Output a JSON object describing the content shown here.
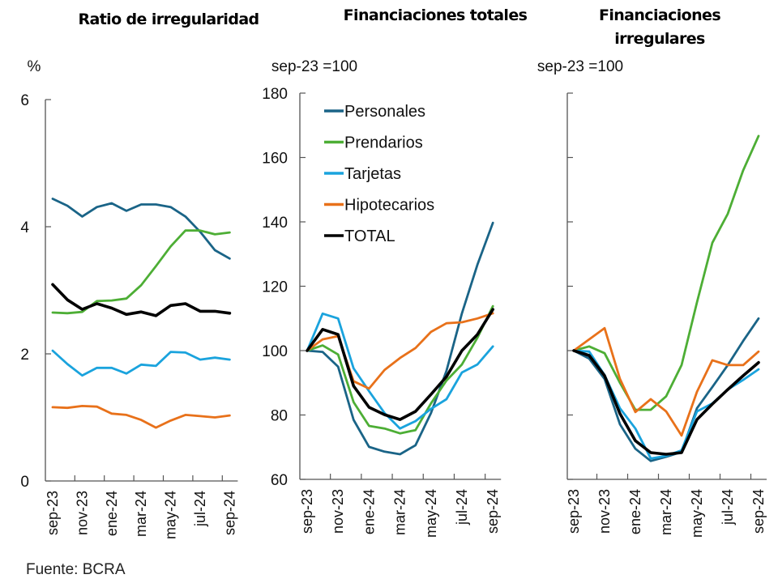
{
  "source": "Fuente: BCRA",
  "chart_data": [
    {
      "type": "line",
      "title": "Ratio de irregularidad",
      "ylabel": "%",
      "ylim": [
        0,
        6
      ],
      "yticks": [
        0,
        2,
        4,
        6
      ],
      "x": [
        "sep-23",
        "oct-23",
        "nov-23",
        "dic-23",
        "ene-24",
        "feb-24",
        "mar-24",
        "abr-24",
        "may-24",
        "jun-24",
        "jul-24",
        "ago-24",
        "sep-24"
      ],
      "xtick_labels": [
        "sep-23",
        "nov-23",
        "ene-24",
        "mar-24",
        "may-24",
        "jul-24",
        "sep-24"
      ],
      "series": [
        {
          "name": "Personales",
          "color": "#1A6487",
          "values": [
            4.44,
            4.33,
            4.16,
            4.31,
            4.37,
            4.25,
            4.35,
            4.35,
            4.31,
            4.16,
            3.92,
            3.63,
            3.5
          ]
        },
        {
          "name": "Prendarios",
          "color": "#4DAE35",
          "values": [
            2.65,
            2.64,
            2.66,
            2.83,
            2.84,
            2.87,
            3.08,
            3.38,
            3.69,
            3.94,
            3.94,
            3.88,
            3.91
          ]
        },
        {
          "name": "Tarjetas",
          "color": "#1AA3DD",
          "values": [
            2.05,
            1.84,
            1.66,
            1.78,
            1.78,
            1.69,
            1.83,
            1.81,
            2.03,
            2.02,
            1.91,
            1.94,
            1.91
          ]
        },
        {
          "name": "Hipotecarios",
          "color": "#E8711A",
          "values": [
            1.16,
            1.15,
            1.18,
            1.17,
            1.06,
            1.04,
            0.96,
            0.84,
            0.95,
            1.04,
            1.02,
            1.0,
            1.03
          ]
        },
        {
          "name": "TOTAL",
          "color": "#000000",
          "values": [
            3.09,
            2.85,
            2.7,
            2.79,
            2.72,
            2.62,
            2.66,
            2.6,
            2.76,
            2.79,
            2.67,
            2.67,
            2.64
          ]
        }
      ]
    },
    {
      "type": "line",
      "title": "Financiaciones totales",
      "ylabel": "sep-23 =100",
      "ylim": [
        60,
        180
      ],
      "yticks": [
        60,
        80,
        100,
        120,
        140,
        160,
        180
      ],
      "legend": "top-left",
      "x": [
        "sep-23",
        "oct-23",
        "nov-23",
        "dic-23",
        "ene-24",
        "feb-24",
        "mar-24",
        "abr-24",
        "may-24",
        "jun-24",
        "jul-24",
        "ago-24",
        "sep-24"
      ],
      "xtick_labels": [
        "sep-23",
        "nov-23",
        "ene-24",
        "mar-24",
        "may-24",
        "jul-24",
        "sep-24"
      ],
      "series": [
        {
          "name": "Personales",
          "color": "#1A6487",
          "values": [
            100,
            99.6,
            95,
            78.5,
            70.1,
            68.6,
            67.8,
            70.6,
            80.6,
            93.7,
            111.6,
            126.7,
            139.7
          ]
        },
        {
          "name": "Prendarios",
          "color": "#4DAE35",
          "values": [
            100,
            101.6,
            98.8,
            84,
            76.6,
            75.8,
            74.3,
            75.3,
            83.6,
            90.7,
            95.7,
            104,
            113.8
          ]
        },
        {
          "name": "Tarjetas",
          "color": "#1AA3DD",
          "values": [
            100,
            111.5,
            110,
            94.5,
            87.4,
            80.6,
            75.8,
            78.1,
            81.9,
            84.9,
            93.2,
            95.7,
            101.3
          ]
        },
        {
          "name": "Hipotecarios",
          "color": "#E8711A",
          "values": [
            100,
            103.5,
            104.5,
            90.5,
            88.2,
            94,
            97.7,
            100.8,
            105.8,
            108.5,
            108.8,
            110,
            111.6
          ]
        },
        {
          "name": "TOTAL",
          "color": "#000000",
          "values": [
            100,
            106.6,
            105,
            89,
            82.4,
            80.1,
            78.6,
            81.1,
            86.4,
            91.9,
            100,
            105,
            112.8
          ]
        }
      ]
    },
    {
      "type": "line",
      "title": "Financiaciones irregulares",
      "ylabel": "sep-23 =100",
      "ylim": [
        60,
        180
      ],
      "yticks": [
        60,
        80,
        100,
        120,
        140,
        160,
        180
      ],
      "x": [
        "sep-23",
        "oct-23",
        "nov-23",
        "dic-23",
        "ene-24",
        "feb-24",
        "mar-24",
        "abr-24",
        "may-24",
        "jun-24",
        "jul-24",
        "ago-24",
        "sep-24"
      ],
      "xtick_labels": [
        "sep-23",
        "nov-23",
        "ene-24",
        "mar-24",
        "may-24",
        "jul-24",
        "sep-24"
      ],
      "series": [
        {
          "name": "Personales",
          "color": "#1A6487",
          "values": [
            100,
            97.5,
            91.2,
            77.1,
            69.5,
            65.7,
            67,
            68.5,
            82.1,
            88.7,
            95.5,
            103,
            110
          ]
        },
        {
          "name": "Prendarios",
          "color": "#4DAE35",
          "values": [
            100,
            101.3,
            99.2,
            90,
            81.6,
            81.6,
            85.8,
            95.5,
            115,
            133.5,
            142.5,
            156,
            166.7
          ]
        },
        {
          "name": "Tarjetas",
          "color": "#1AA3DD",
          "values": [
            100,
            99.7,
            92.4,
            82.1,
            75.8,
            66.5,
            67.3,
            69,
            81.1,
            83.6,
            87.9,
            90.9,
            94.2
          ]
        },
        {
          "name": "Hipotecarios",
          "color": "#E8711A",
          "values": [
            100,
            103.5,
            107,
            91.2,
            80.9,
            84.9,
            81.1,
            73.6,
            87.2,
            97,
            95.5,
            95.5,
            99.7
          ]
        },
        {
          "name": "TOTAL",
          "color": "#000000",
          "values": [
            100,
            98.5,
            92.2,
            80.4,
            72,
            68.3,
            67.8,
            68.3,
            78.6,
            83.4,
            87.9,
            92.2,
            96.3
          ]
        }
      ]
    }
  ]
}
